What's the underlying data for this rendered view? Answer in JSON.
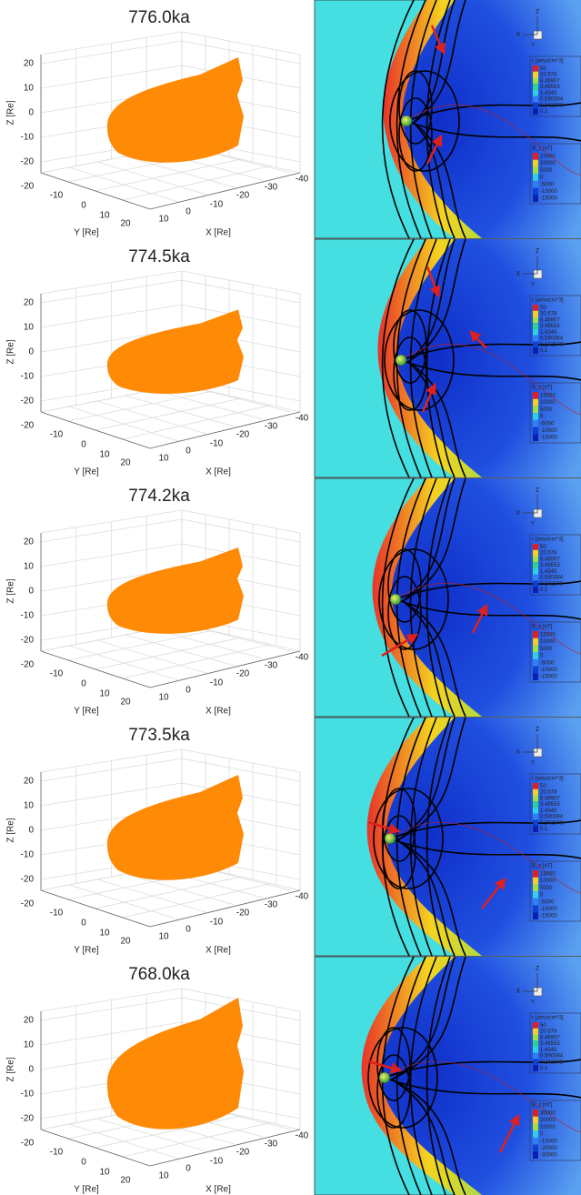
{
  "panels": [
    {
      "title": "776.0ka",
      "bz_labels": [
        "15000",
        "10000",
        "5000",
        "0",
        "-5000",
        "-10000",
        "-15000"
      ]
    },
    {
      "title": "774.5ka",
      "bz_labels": [
        "15000",
        "10000",
        "5000",
        "0",
        "-5000",
        "-10000",
        "-15000"
      ]
    },
    {
      "title": "774.2ka",
      "bz_labels": [
        "15000",
        "10000",
        "5000",
        "0",
        "-5000",
        "-10000",
        "-15000"
      ]
    },
    {
      "title": "773.5ka",
      "bz_labels": [
        "15000",
        "10000",
        "5000",
        "0",
        "-5000",
        "-10000",
        "-15000"
      ]
    },
    {
      "title": "768.0ka",
      "bz_labels": [
        "30000",
        "20000",
        "10000",
        "0",
        "-10000",
        "-20000",
        "-30000"
      ]
    }
  ],
  "left_axes": {
    "z_label": "Z [Re]",
    "y_label": "Y [Re]",
    "x_label": "X [Re]",
    "z_ticks": [
      "20",
      "10",
      "0",
      "-10",
      "-20"
    ],
    "y_ticks": [
      "-20",
      "-10",
      "0",
      "10",
      "20"
    ],
    "x_ticks": [
      "10",
      "0",
      "-10",
      "-20",
      "-30",
      "-40"
    ]
  },
  "right_axes": {
    "z": "Z",
    "x": "X",
    "y": "Y"
  },
  "density_legend": {
    "title": "r [amu/cm^3]",
    "labels": [
      "50",
      "20.578",
      "8.46907",
      "3.48553",
      "1.4345",
      "0.590384",
      "0.242978",
      "0.1"
    ]
  },
  "bz_title": "B_z [nT]"
}
